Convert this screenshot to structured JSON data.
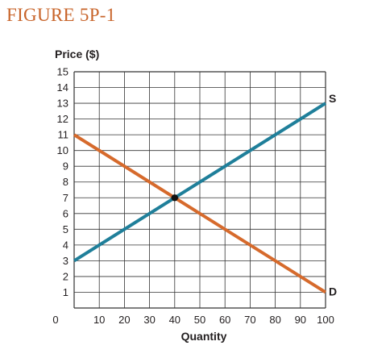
{
  "figure": {
    "title": "FIGURE 5P-1"
  },
  "colors": {
    "title": "#c8642a",
    "supply": "#1f7f9a",
    "demand": "#d66a2c",
    "grid": "#333333",
    "point": "#111111",
    "text": "#231f20"
  },
  "chart_data": {
    "type": "line",
    "xlabel": "Quantity",
    "ylabel": "Price ($)",
    "xlim": [
      0,
      100
    ],
    "ylim": [
      0,
      15
    ],
    "x_ticks": [
      0,
      10,
      20,
      30,
      40,
      50,
      60,
      70,
      80,
      90,
      100
    ],
    "y_ticks": [
      1,
      2,
      3,
      4,
      5,
      6,
      7,
      8,
      9,
      10,
      11,
      12,
      13,
      14,
      15
    ],
    "grid": true,
    "series": [
      {
        "name": "S",
        "x": [
          0,
          100
        ],
        "y": [
          3,
          13
        ]
      },
      {
        "name": "D",
        "x": [
          0,
          100
        ],
        "y": [
          11,
          1
        ]
      }
    ],
    "equilibrium": {
      "x": 40,
      "y": 7
    }
  }
}
